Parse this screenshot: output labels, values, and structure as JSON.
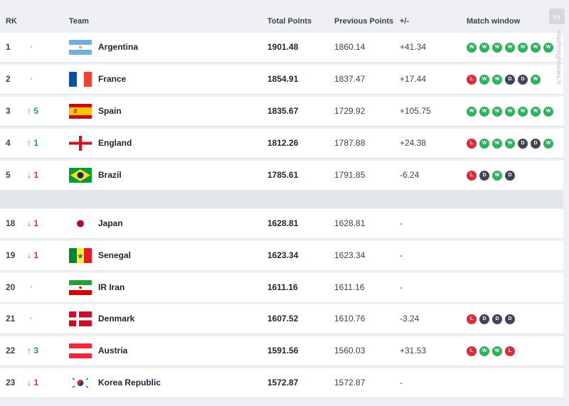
{
  "header": {
    "rank": "RK",
    "team": "Team",
    "total_points": "Total Points",
    "previous_points": "Previous Points",
    "diff": "+/-",
    "match_window": "Match window"
  },
  "rows": [
    {
      "rank": "1",
      "move": "•",
      "dir": "same",
      "team": "Argentina",
      "flag": "argentina",
      "total": "1901.48",
      "previous": "1860.14",
      "diff": "+41.34",
      "matches": [
        "W",
        "W",
        "W",
        "W",
        "W",
        "W",
        "W"
      ]
    },
    {
      "rank": "2",
      "move": "•",
      "dir": "same",
      "team": "France",
      "flag": "france",
      "total": "1854.91",
      "previous": "1837.47",
      "diff": "+17.44",
      "matches": [
        "L",
        "W",
        "W",
        "D",
        "D",
        "W"
      ]
    },
    {
      "rank": "3",
      "move": "↑ 5",
      "dir": "up",
      "team": "Spain",
      "flag": "spain",
      "total": "1835.67",
      "previous": "1729.92",
      "diff": "+105.75",
      "matches": [
        "W",
        "W",
        "W",
        "W",
        "W",
        "W",
        "W"
      ]
    },
    {
      "rank": "4",
      "move": "↑ 1",
      "dir": "up",
      "team": "England",
      "flag": "england",
      "total": "1812.26",
      "previous": "1787.88",
      "diff": "+24.38",
      "matches": [
        "L",
        "W",
        "W",
        "W",
        "D",
        "D",
        "W"
      ]
    },
    {
      "rank": "5",
      "move": "↓ 1",
      "dir": "down",
      "team": "Brazil",
      "flag": "brazil",
      "total": "1785.61",
      "previous": "1791.85",
      "diff": "-6.24",
      "matches": [
        "L",
        "D",
        "W",
        "D"
      ]
    },
    {
      "rank": "18",
      "move": "↓ 1",
      "dir": "down",
      "team": "Japan",
      "flag": "japan",
      "total": "1628.81",
      "previous": "1628.81",
      "diff": "-",
      "matches": []
    },
    {
      "rank": "19",
      "move": "↓ 1",
      "dir": "down",
      "team": "Senegal",
      "flag": "senegal",
      "total": "1623.34",
      "previous": "1623.34",
      "diff": "-",
      "matches": []
    },
    {
      "rank": "20",
      "move": "•",
      "dir": "same",
      "team": "IR Iran",
      "flag": "iran",
      "total": "1611.16",
      "previous": "1611.16",
      "diff": "-",
      "matches": []
    },
    {
      "rank": "21",
      "move": "•",
      "dir": "same",
      "team": "Denmark",
      "flag": "denmark",
      "total": "1607.52",
      "previous": "1610.76",
      "diff": "-3.24",
      "matches": [
        "L",
        "D",
        "D",
        "D"
      ]
    },
    {
      "rank": "22",
      "move": "↑ 3",
      "dir": "up",
      "team": "Austria",
      "flag": "austria",
      "total": "1591.56",
      "previous": "1560.03",
      "diff": "+31.53",
      "matches": [
        "L",
        "W",
        "W",
        "L"
      ]
    },
    {
      "rank": "23",
      "move": "↓ 1",
      "dir": "down",
      "team": "Korea Republic",
      "flag": "korea",
      "total": "1572.87",
      "previous": "1572.87",
      "diff": "-",
      "matches": []
    }
  ],
  "colors": {
    "win": "#2fb15d",
    "loss": "#d62f3f",
    "draw": "#3e4657",
    "up": "#1e9e52",
    "down": "#d92e3d"
  }
}
